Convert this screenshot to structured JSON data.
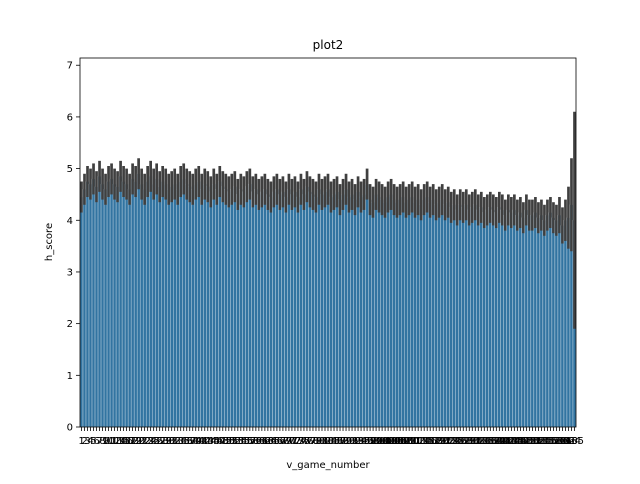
{
  "chart_data": {
    "type": "bar",
    "title": "plot2",
    "xlabel": "v_game_number",
    "ylabel": "h_score",
    "categories": [
      1,
      2,
      3,
      4,
      5,
      6,
      7,
      8,
      9,
      10,
      11,
      12,
      13,
      14,
      15,
      16,
      17,
      18,
      19,
      20,
      21,
      22,
      23,
      24,
      25,
      26,
      27,
      28,
      29,
      30,
      31,
      32,
      33,
      34,
      35,
      36,
      37,
      38,
      39,
      40,
      41,
      42,
      43,
      44,
      45,
      46,
      47,
      48,
      49,
      50,
      51,
      52,
      53,
      54,
      55,
      56,
      57,
      58,
      59,
      60,
      61,
      62,
      63,
      64,
      65,
      66,
      67,
      68,
      69,
      70,
      71,
      72,
      73,
      74,
      75,
      76,
      77,
      78,
      79,
      80,
      81,
      82,
      83,
      84,
      85,
      86,
      87,
      88,
      89,
      90,
      91,
      92,
      93,
      94,
      95,
      96,
      97,
      98,
      99,
      100,
      101,
      102,
      103,
      104,
      105,
      106,
      107,
      108,
      109,
      110,
      111,
      112,
      113,
      114,
      115,
      116,
      117,
      118,
      119,
      120,
      121,
      122,
      123,
      124,
      125,
      126,
      127,
      128,
      129,
      130,
      131,
      132,
      133,
      134,
      135,
      136,
      137,
      138,
      139,
      140,
      141,
      142,
      143,
      144,
      145,
      146,
      147,
      148,
      149,
      150,
      151,
      152,
      153,
      154,
      155,
      156,
      157,
      158,
      159,
      160,
      161,
      162,
      163,
      164,
      165
    ],
    "values": [
      4.45,
      4.6,
      4.75,
      4.7,
      4.8,
      4.65,
      4.85,
      4.7,
      4.6,
      4.75,
      4.8,
      4.7,
      4.65,
      4.85,
      4.75,
      4.7,
      4.6,
      4.8,
      4.75,
      4.9,
      4.7,
      4.6,
      4.75,
      4.85,
      4.7,
      4.8,
      4.65,
      4.75,
      4.7,
      4.6,
      4.65,
      4.7,
      4.6,
      4.75,
      4.8,
      4.7,
      4.65,
      4.6,
      4.7,
      4.75,
      4.6,
      4.7,
      4.65,
      4.55,
      4.7,
      4.6,
      4.75,
      4.65,
      4.6,
      4.55,
      4.6,
      4.65,
      4.5,
      4.6,
      4.55,
      4.65,
      4.7,
      4.55,
      4.6,
      4.5,
      4.55,
      4.6,
      4.5,
      4.45,
      4.55,
      4.6,
      4.5,
      4.55,
      4.45,
      4.6,
      4.5,
      4.55,
      4.45,
      4.6,
      4.5,
      4.65,
      4.55,
      4.5,
      4.45,
      4.6,
      4.5,
      4.55,
      4.6,
      4.45,
      4.5,
      4.55,
      4.4,
      4.5,
      4.6,
      4.45,
      4.5,
      4.4,
      4.55,
      4.45,
      4.5,
      4.7,
      4.4,
      4.35,
      4.5,
      4.45,
      4.4,
      4.35,
      4.45,
      4.5,
      4.4,
      4.35,
      4.4,
      4.45,
      4.35,
      4.4,
      4.45,
      4.35,
      4.4,
      4.3,
      4.4,
      4.45,
      4.35,
      4.4,
      4.3,
      4.35,
      4.4,
      4.3,
      4.35,
      4.25,
      4.3,
      4.2,
      4.3,
      4.25,
      4.3,
      4.2,
      4.25,
      4.3,
      4.2,
      4.25,
      4.15,
      4.2,
      4.25,
      4.2,
      4.15,
      4.25,
      4.2,
      4.1,
      4.2,
      4.15,
      4.2,
      4.1,
      4.15,
      4.05,
      4.2,
      4.1,
      4.1,
      4.15,
      4.05,
      4.1,
      4.0,
      4.1,
      4.15,
      4.05,
      4.0,
      4.1,
      3.9,
      4.0,
      4.05,
      4.3,
      4.0
    ],
    "errors": [
      0.3,
      0.3,
      0.3,
      0.3,
      0.3,
      0.3,
      0.3,
      0.3,
      0.3,
      0.3,
      0.3,
      0.3,
      0.3,
      0.3,
      0.3,
      0.3,
      0.3,
      0.3,
      0.3,
      0.3,
      0.3,
      0.3,
      0.3,
      0.3,
      0.3,
      0.3,
      0.3,
      0.3,
      0.3,
      0.3,
      0.3,
      0.3,
      0.3,
      0.3,
      0.3,
      0.3,
      0.3,
      0.3,
      0.3,
      0.3,
      0.3,
      0.3,
      0.3,
      0.3,
      0.3,
      0.3,
      0.3,
      0.3,
      0.3,
      0.3,
      0.3,
      0.3,
      0.3,
      0.3,
      0.3,
      0.3,
      0.3,
      0.3,
      0.3,
      0.3,
      0.3,
      0.3,
      0.3,
      0.3,
      0.3,
      0.3,
      0.3,
      0.3,
      0.3,
      0.3,
      0.3,
      0.3,
      0.3,
      0.3,
      0.3,
      0.3,
      0.3,
      0.3,
      0.3,
      0.3,
      0.3,
      0.3,
      0.3,
      0.3,
      0.3,
      0.3,
      0.3,
      0.3,
      0.3,
      0.3,
      0.3,
      0.3,
      0.3,
      0.3,
      0.3,
      0.3,
      0.3,
      0.3,
      0.3,
      0.3,
      0.3,
      0.3,
      0.3,
      0.3,
      0.3,
      0.3,
      0.3,
      0.3,
      0.3,
      0.3,
      0.3,
      0.3,
      0.3,
      0.3,
      0.3,
      0.3,
      0.3,
      0.3,
      0.3,
      0.3,
      0.3,
      0.3,
      0.3,
      0.3,
      0.3,
      0.3,
      0.3,
      0.3,
      0.3,
      0.3,
      0.3,
      0.3,
      0.3,
      0.3,
      0.3,
      0.3,
      0.3,
      0.3,
      0.3,
      0.3,
      0.3,
      0.3,
      0.3,
      0.3,
      0.3,
      0.3,
      0.3,
      0.3,
      0.3,
      0.3,
      0.3,
      0.3,
      0.3,
      0.3,
      0.3,
      0.3,
      0.3,
      0.3,
      0.3,
      0.35,
      0.35,
      0.4,
      0.6,
      0.9,
      2.1
    ],
    "color": "#3274a1",
    "error_color": "#3f3f3f",
    "ylim": [
      0,
      7.14
    ],
    "yticks": [
      0,
      1,
      2,
      3,
      4,
      5,
      6,
      7
    ]
  }
}
